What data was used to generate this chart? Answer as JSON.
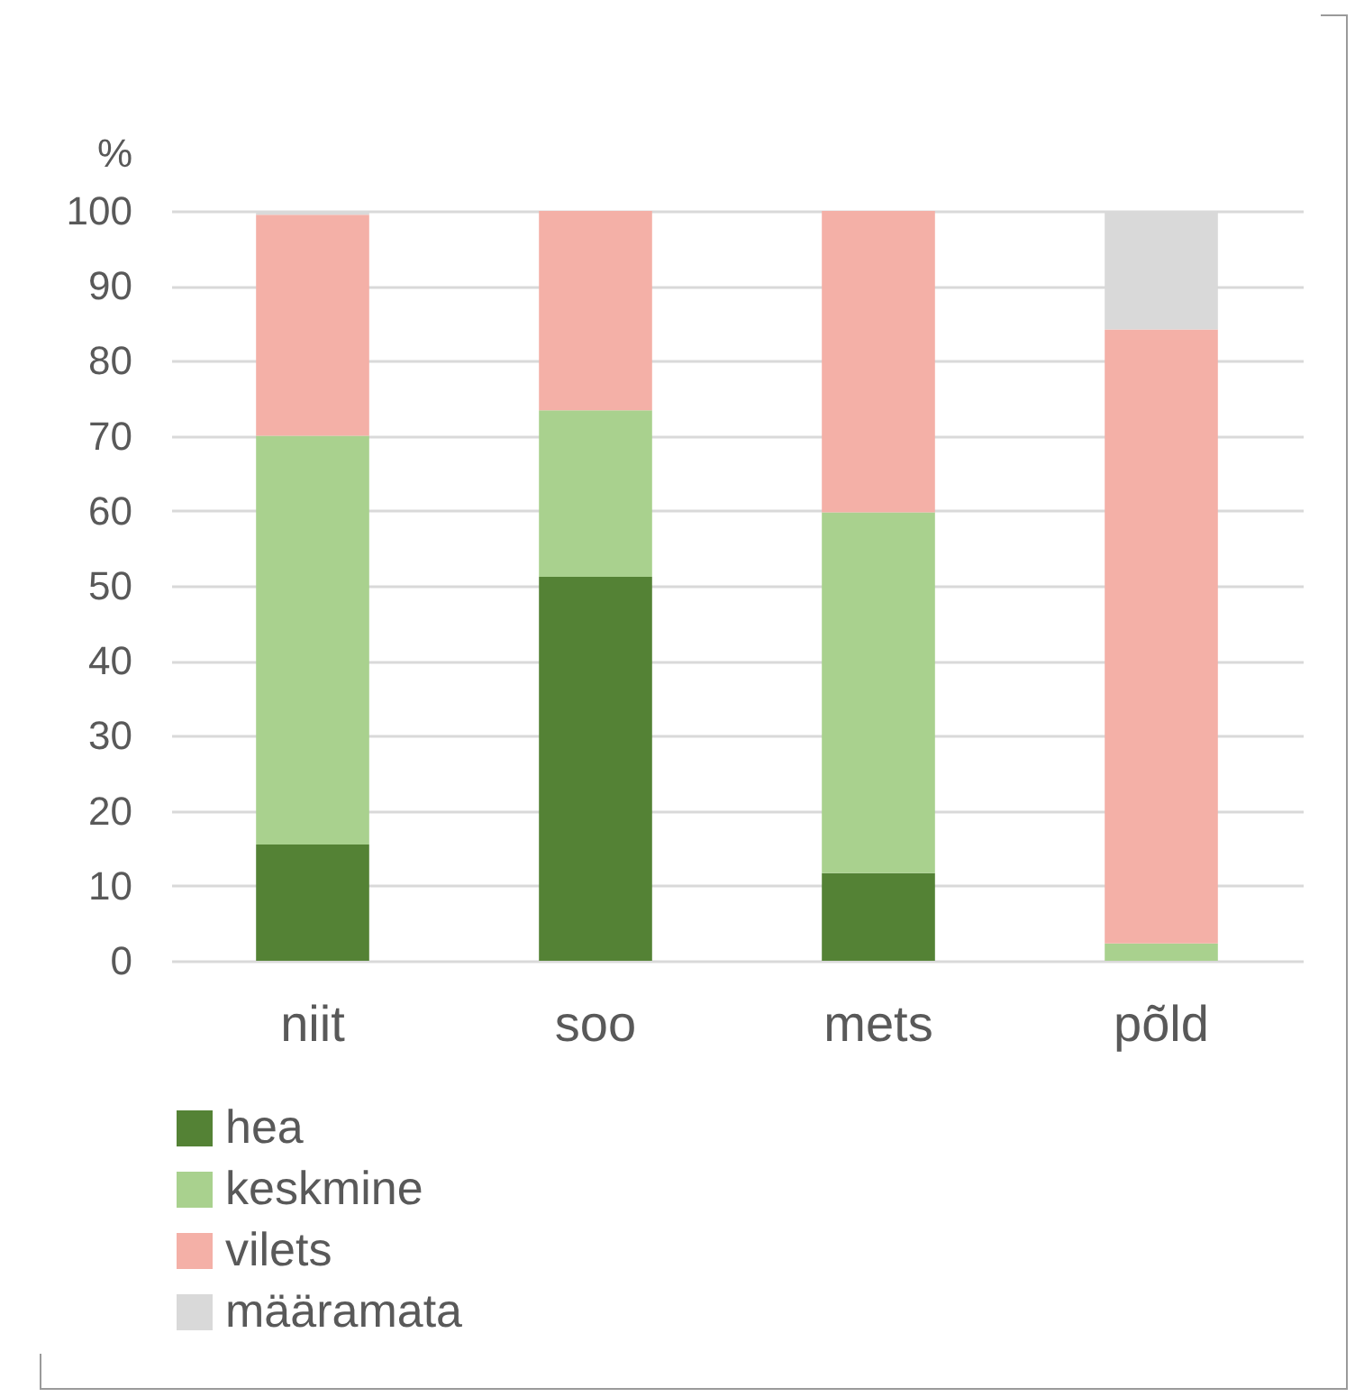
{
  "chart_data": {
    "type": "bar",
    "stacked": true,
    "ylabel": "%",
    "categories": [
      "niit",
      "soo",
      "mets",
      "põld"
    ],
    "series": [
      {
        "name": "hea",
        "color": "#548235",
        "values": [
          15.5,
          51.2,
          11.7,
          0
        ]
      },
      {
        "name": "keskmine",
        "color": "#a9d18e",
        "values": [
          54.5,
          22.2,
          48.1,
          2.3
        ]
      },
      {
        "name": "vilets",
        "color": "#f4b0a7",
        "values": [
          29.5,
          26.6,
          40.2,
          81.9
        ]
      },
      {
        "name": "määramata",
        "color": "#d9d9d9",
        "values": [
          0.5,
          0,
          0,
          15.8
        ]
      }
    ],
    "ylim": [
      0,
      100
    ],
    "yticks": [
      0,
      10,
      20,
      30,
      40,
      50,
      60,
      70,
      80,
      90,
      100
    ],
    "grid": "y",
    "legend": "bottom"
  }
}
